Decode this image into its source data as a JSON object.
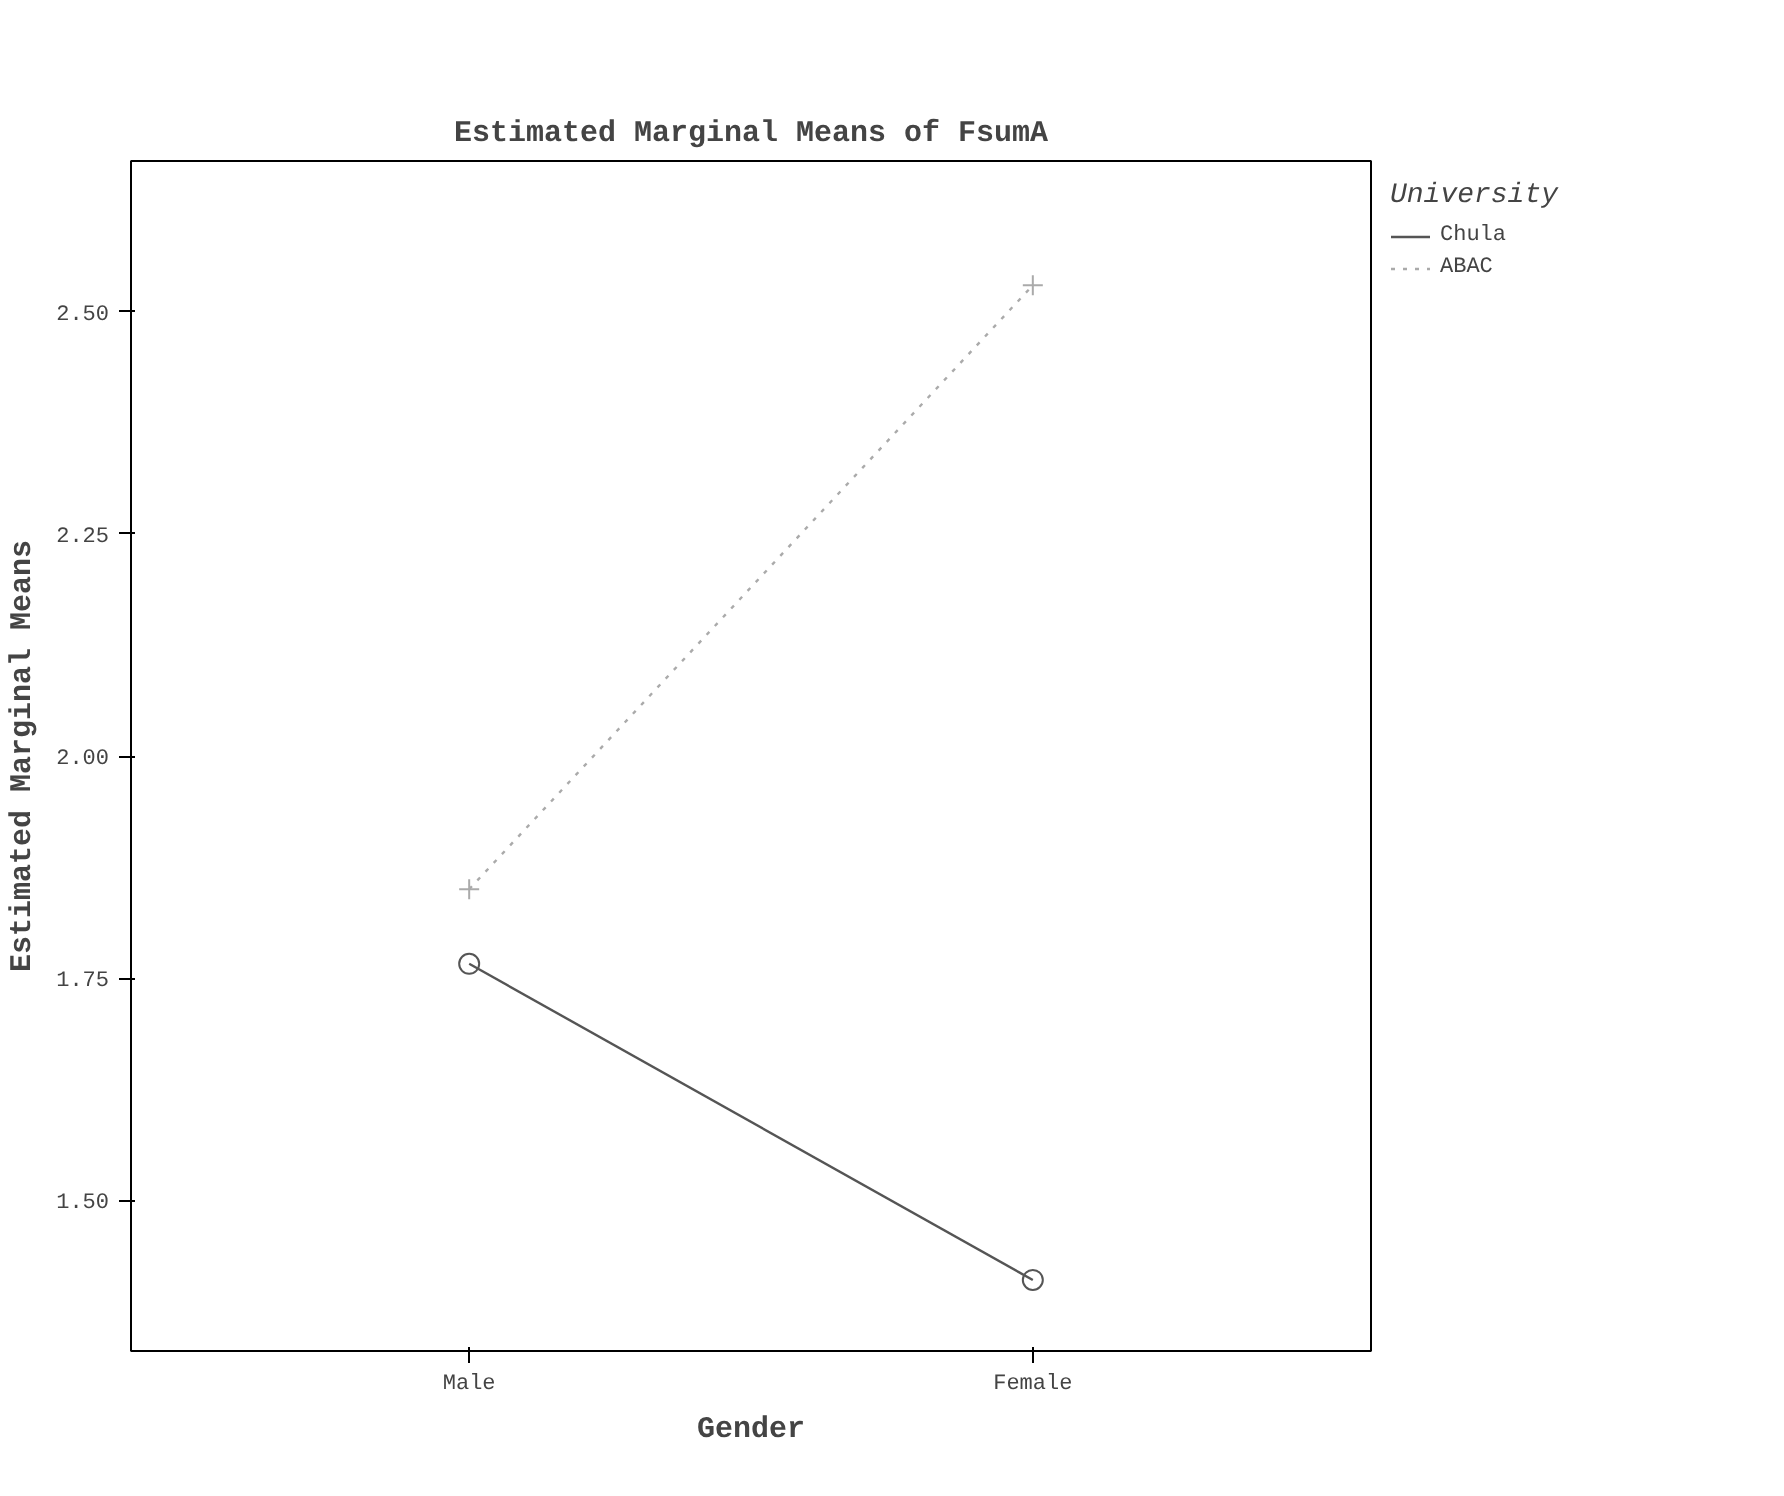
{
  "chart_data": {
    "type": "line",
    "title": "Estimated Marginal Means of FsumA",
    "xlabel": "Gender",
    "ylabel": "Estimated Marginal Means",
    "legend_title": "University",
    "categories": [
      "Male",
      "Female"
    ],
    "series": [
      {
        "name": "Chula",
        "color": "#555555",
        "values": [
          1.766,
          1.41
        ],
        "marker": "circle",
        "line_style": "solid"
      },
      {
        "name": "ABAC",
        "color": "#aaaaaa",
        "values": [
          1.85,
          2.53
        ],
        "marker": "cross",
        "line_style": "dotted"
      }
    ],
    "ylim": [
      1.33,
      2.67
    ],
    "yticks": [
      {
        "value": 1.5,
        "label": "1.50"
      },
      {
        "value": 1.75,
        "label": "1.75"
      },
      {
        "value": 2.0,
        "label": "2.00"
      },
      {
        "value": 2.25,
        "label": "2.25"
      },
      {
        "value": 2.5,
        "label": "2.50"
      }
    ],
    "grid": false,
    "legend": "top right"
  }
}
